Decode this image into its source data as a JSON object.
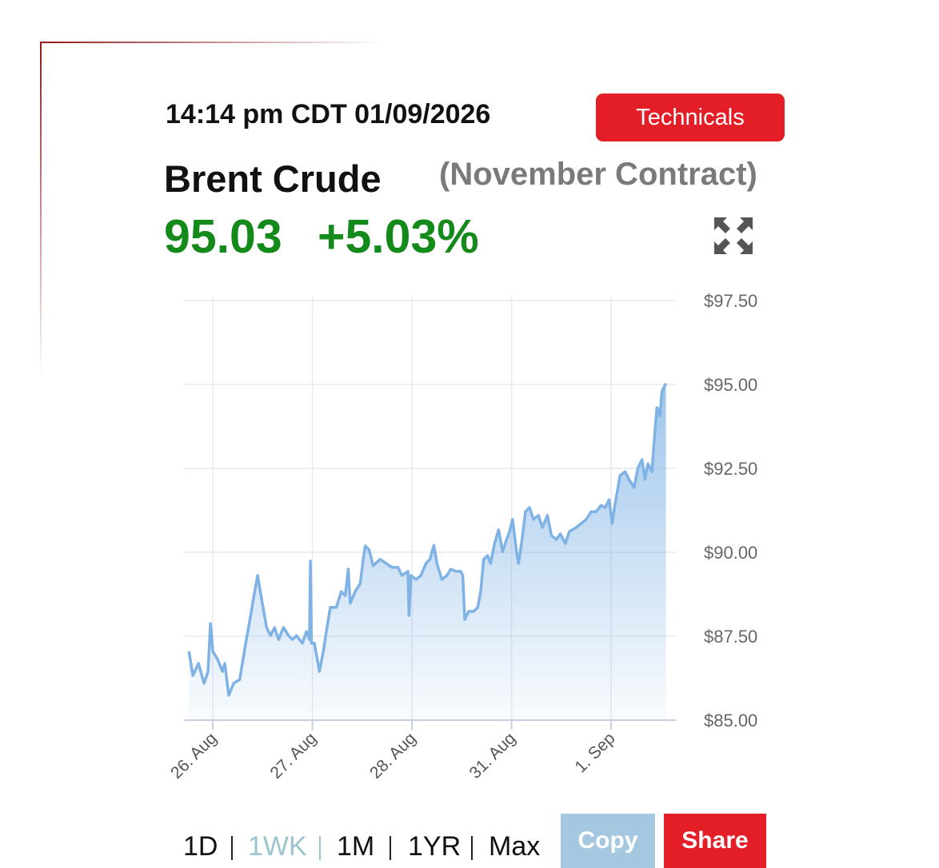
{
  "widget": {
    "timestamp": "14:14 pm CDT 01/09/2026",
    "technicals": "Technicals",
    "title": "Brent Crude",
    "subtitle": "(November Contract)",
    "price": "95.03",
    "change": "+5.03%",
    "ranges": [
      "1D",
      "1WK",
      "1M",
      "1YR",
      "Max"
    ],
    "copy": "Copy",
    "share": "Share"
  },
  "chart_data": {
    "type": "line",
    "color": "#7fb2e5",
    "grid": true,
    "xlim": [
      -0.29,
      4.65
    ],
    "xticks": [
      {
        "value": 0,
        "label": "26. Aug"
      },
      {
        "value": 1,
        "label": "27. Aug"
      },
      {
        "value": 2,
        "label": "28. Aug"
      },
      {
        "value": 3,
        "label": "31. Aug"
      },
      {
        "value": 4,
        "label": "1. Sep"
      }
    ],
    "ylim": [
      85,
      97.5
    ],
    "yticks": [
      {
        "value": 85,
        "label": "$85.00"
      },
      {
        "value": 87.5,
        "label": "$87.50"
      },
      {
        "value": 90,
        "label": "$90.00"
      },
      {
        "value": 92.5,
        "label": "$92.50"
      },
      {
        "value": 95,
        "label": "$95.00"
      },
      {
        "value": 97.5,
        "label": "$97.50"
      }
    ],
    "x": [
      -0.24,
      -0.2,
      -0.145,
      -0.088,
      -0.048,
      -0.024,
      0,
      0.048,
      0.096,
      0.12,
      0.16,
      0.21,
      0.27,
      0.33,
      0.38,
      0.42,
      0.45,
      0.49,
      0.54,
      0.58,
      0.62,
      0.66,
      0.71,
      0.76,
      0.8,
      0.84,
      0.9,
      0.94,
      0.97,
      0.98,
      0.99,
      1.02,
      1.07,
      1.11,
      1.14,
      1.18,
      1.24,
      1.29,
      1.33,
      1.36,
      1.38,
      1.43,
      1.48,
      1.51,
      1.53,
      1.57,
      1.61,
      1.68,
      1.74,
      1.8,
      1.86,
      1.9,
      1.96,
      1.97,
      1.99,
      2.04,
      2.09,
      2.14,
      2.18,
      2.22,
      2.25,
      2.3,
      2.35,
      2.39,
      2.44,
      2.49,
      2.51,
      2.53,
      2.57,
      2.62,
      2.66,
      2.69,
      2.72,
      2.76,
      2.79,
      2.83,
      2.87,
      2.91,
      2.95,
      2.98,
      3.01,
      3.05,
      3.07,
      3.1,
      3.14,
      3.18,
      3.22,
      3.27,
      3.31,
      3.36,
      3.4,
      3.45,
      3.49,
      3.54,
      3.58,
      3.65,
      3.7,
      3.75,
      3.8,
      3.85,
      3.9,
      3.94,
      3.98,
      4.01,
      4.04,
      4.09,
      4.14,
      4.18,
      4.23,
      4.27,
      4.31,
      4.34,
      4.37,
      4.41,
      4.43,
      4.46,
      4.49,
      4.51,
      4.55
    ],
    "values": [
      87.05,
      86.33,
      86.69,
      86.1,
      86.45,
      87.88,
      87.05,
      86.81,
      86.45,
      86.69,
      85.74,
      86.1,
      86.21,
      87.29,
      88.12,
      88.83,
      89.31,
      88.6,
      87.76,
      87.52,
      87.76,
      87.4,
      87.76,
      87.52,
      87.4,
      87.52,
      87.29,
      87.64,
      87.4,
      89.74,
      87.29,
      87.29,
      86.45,
      87.05,
      87.64,
      88.36,
      88.36,
      88.83,
      88.71,
      89.5,
      88.48,
      88.83,
      89.07,
      89.79,
      90.19,
      90.07,
      89.6,
      89.79,
      89.67,
      89.55,
      89.55,
      89.31,
      89.43,
      88.12,
      89.31,
      89.19,
      89.31,
      89.67,
      89.79,
      90.21,
      89.67,
      89.19,
      89.31,
      89.5,
      89.43,
      89.43,
      89.31,
      88.0,
      88.24,
      88.24,
      88.36,
      88.83,
      89.79,
      89.9,
      89.67,
      90.26,
      90.67,
      90.02,
      90.38,
      90.62,
      90.98,
      90.02,
      89.67,
      90.26,
      91.21,
      91.33,
      90.98,
      91.1,
      90.74,
      91.1,
      90.5,
      90.38,
      90.55,
      90.26,
      90.62,
      90.74,
      90.86,
      90.98,
      91.21,
      91.21,
      91.4,
      91.33,
      91.57,
      90.86,
      91.45,
      92.29,
      92.4,
      92.17,
      91.93,
      92.52,
      92.76,
      92.17,
      92.64,
      92.4,
      93.24,
      94.31,
      94.07,
      94.79,
      95.03
    ]
  }
}
